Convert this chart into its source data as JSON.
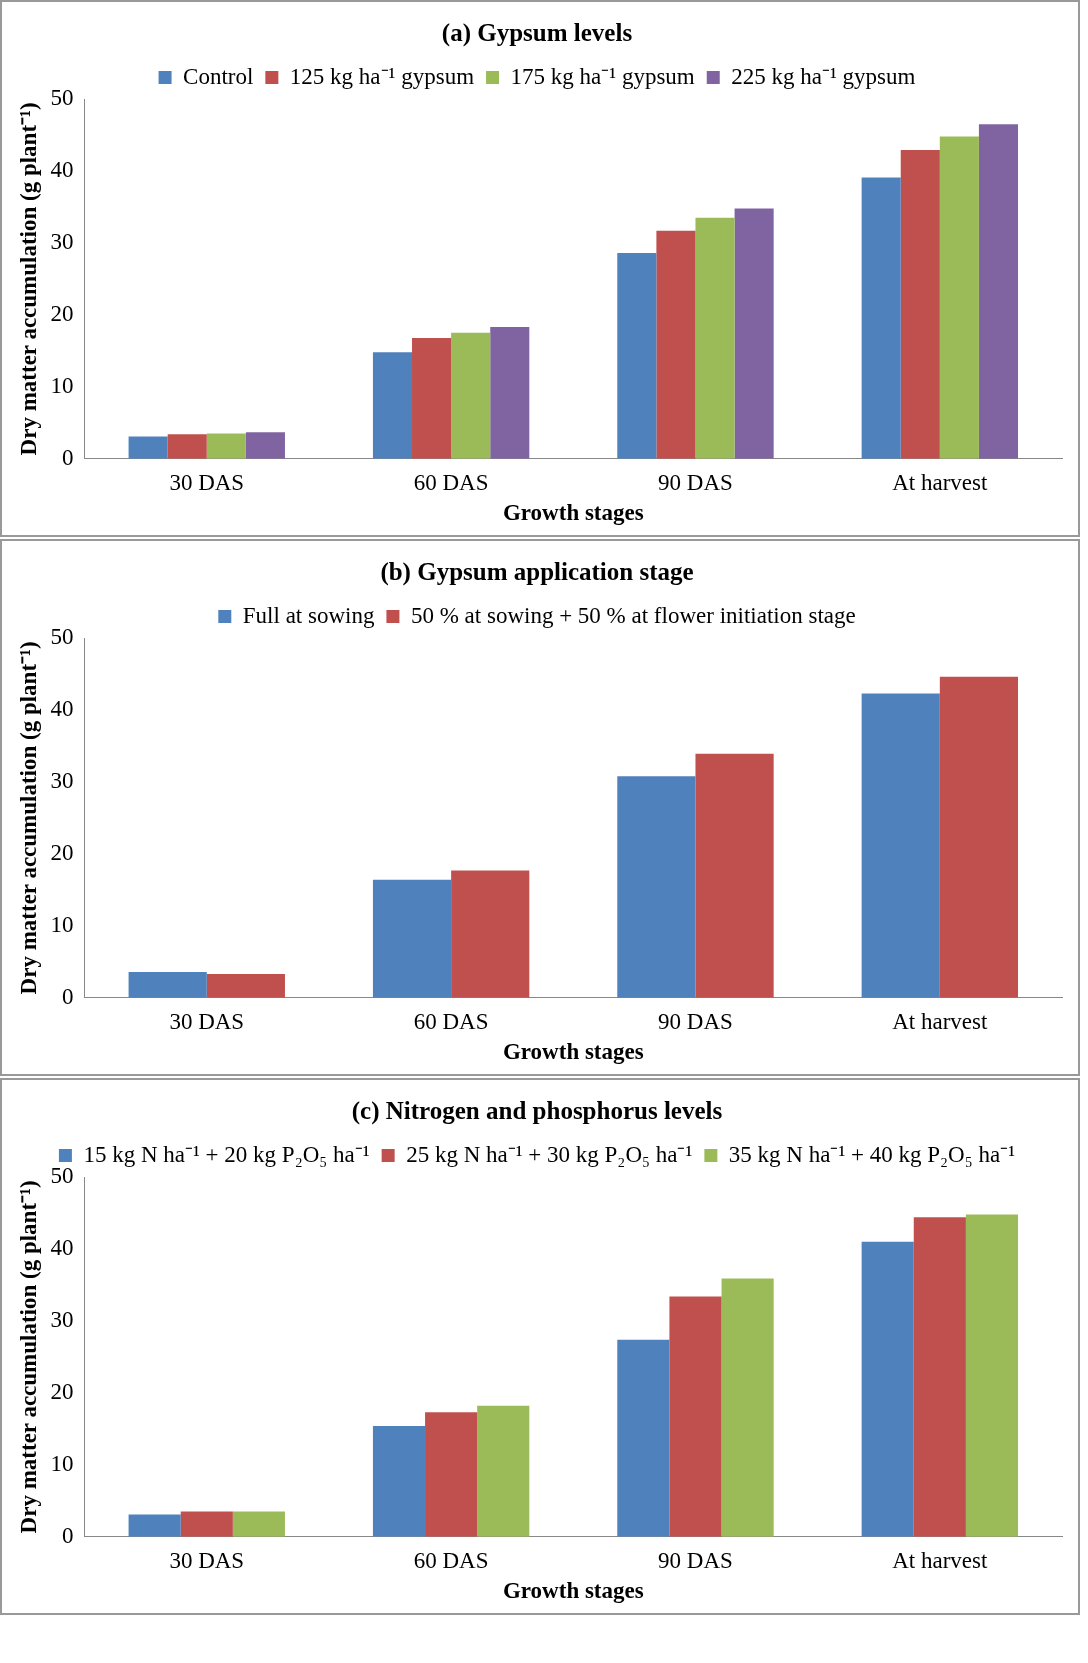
{
  "chart_data": [
    {
      "type": "bar",
      "title": "(a) Gypsum levels",
      "xlabel": "Growth stages",
      "ylabel": "Dry matter accumulation (g plant⁻¹)",
      "categories": [
        "30 DAS",
        "60 DAS",
        "90 DAS",
        "At harvest"
      ],
      "ylim": [
        0,
        50
      ],
      "yticks": [
        0,
        10,
        20,
        30,
        40,
        50
      ],
      "grid": false,
      "legend": "top",
      "series": [
        {
          "name": "Control",
          "color": "#4f81bd",
          "values": [
            3.1,
            14.8,
            28.6,
            39.1
          ]
        },
        {
          "name": "125 kg ha⁻¹ gypsum",
          "color": "#c0504d",
          "values": [
            3.4,
            16.8,
            31.7,
            42.9
          ]
        },
        {
          "name": "175 kg ha⁻¹ gypsum",
          "color": "#9bbb59",
          "values": [
            3.5,
            17.5,
            33.5,
            44.8
          ]
        },
        {
          "name": "225 kg ha⁻¹ gypsum",
          "color": "#8064a2",
          "values": [
            3.7,
            18.3,
            34.8,
            46.5
          ]
        }
      ]
    },
    {
      "type": "bar",
      "title": "(b) Gypsum application stage",
      "xlabel": "Growth stages",
      "ylabel": "Dry matter accumulation (g plant⁻¹)",
      "categories": [
        "30 DAS",
        "60 DAS",
        "90 DAS",
        "At harvest"
      ],
      "ylim": [
        0,
        50
      ],
      "yticks": [
        0,
        10,
        20,
        30,
        40,
        50
      ],
      "grid": false,
      "legend": "top",
      "series": [
        {
          "name": "Full at sowing",
          "color": "#4f81bd",
          "values": [
            3.6,
            16.4,
            30.8,
            42.3
          ]
        },
        {
          "name": "50 % at sowing + 50 % at flower initiation stage",
          "color": "#c0504d",
          "values": [
            3.3,
            17.7,
            33.9,
            44.6
          ]
        }
      ]
    },
    {
      "type": "bar",
      "title": "(c) Nitrogen and phosphorus levels",
      "xlabel": "Growth stages",
      "ylabel": "Dry matter accumulation (g plant⁻¹)",
      "categories": [
        "30 DAS",
        "60 DAS",
        "90 DAS",
        "At harvest"
      ],
      "ylim": [
        0,
        50
      ],
      "yticks": [
        0,
        10,
        20,
        30,
        40,
        50
      ],
      "grid": false,
      "legend": "top",
      "series": [
        {
          "name": "15 kg N ha⁻¹ + 20 kg P₂O₅ ha⁻¹",
          "color": "#4f81bd",
          "values": [
            3.1,
            15.4,
            27.4,
            41.0
          ]
        },
        {
          "name": "25 kg N ha⁻¹ + 30 kg P₂O₅ ha⁻¹",
          "color": "#c0504d",
          "values": [
            3.5,
            17.3,
            33.4,
            44.4
          ]
        },
        {
          "name": "35 kg N ha⁻¹ + 40 kg P₂O₅ ha⁻¹",
          "color": "#9bbb59",
          "values": [
            3.5,
            18.2,
            35.9,
            44.8
          ]
        }
      ]
    }
  ]
}
